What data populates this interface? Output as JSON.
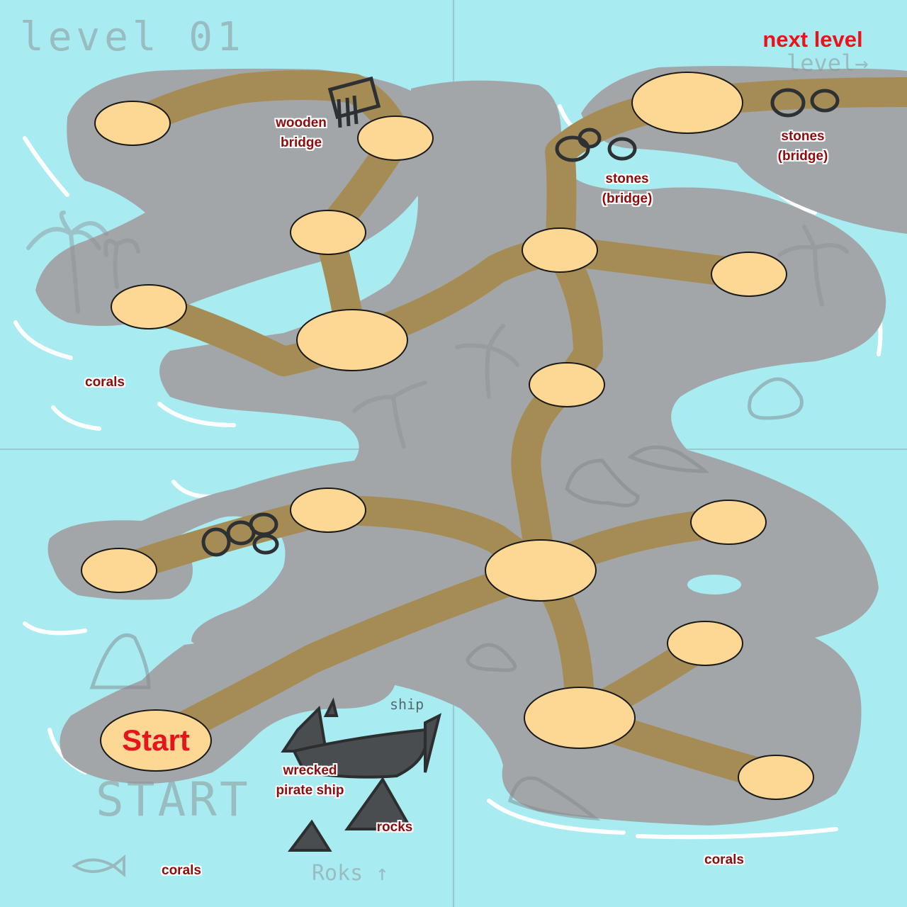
{
  "level_sketch_text": "level 01",
  "next_level_label": "next level",
  "next_level_sketch_text": "level→",
  "start_label": "Start",
  "start_sketch_text": "START",
  "rocks_sketch_text": "Roks ↑",
  "ship_sketch_text": "ship",
  "labels": {
    "wooden_bridge": [
      "wooden",
      "bridge"
    ],
    "stones_bridge_top_right": [
      "stones",
      "(bridge)"
    ],
    "stones_bridge_center": [
      "stones",
      "(bridge)"
    ],
    "corals_left": "corals",
    "wrecked_ship": [
      "wrecked",
      "pirate ship"
    ],
    "rocks": "rocks",
    "corals_bottom_left": "corals",
    "corals_bottom_right": "corals"
  },
  "colors": {
    "sea": "#a8ecf2",
    "land": "#a3a6a9",
    "path": "#a58c55",
    "node_fill": "#fdd894",
    "node_stroke": "#1a1a1a",
    "label_text": "#8b0d0d",
    "accent_red": "#e8141b"
  },
  "icons": [
    "palm-tree-icon",
    "stone-bridge-icon",
    "wooden-bridge-icon",
    "rock-icon",
    "shipwreck-icon",
    "fish-icon"
  ]
}
